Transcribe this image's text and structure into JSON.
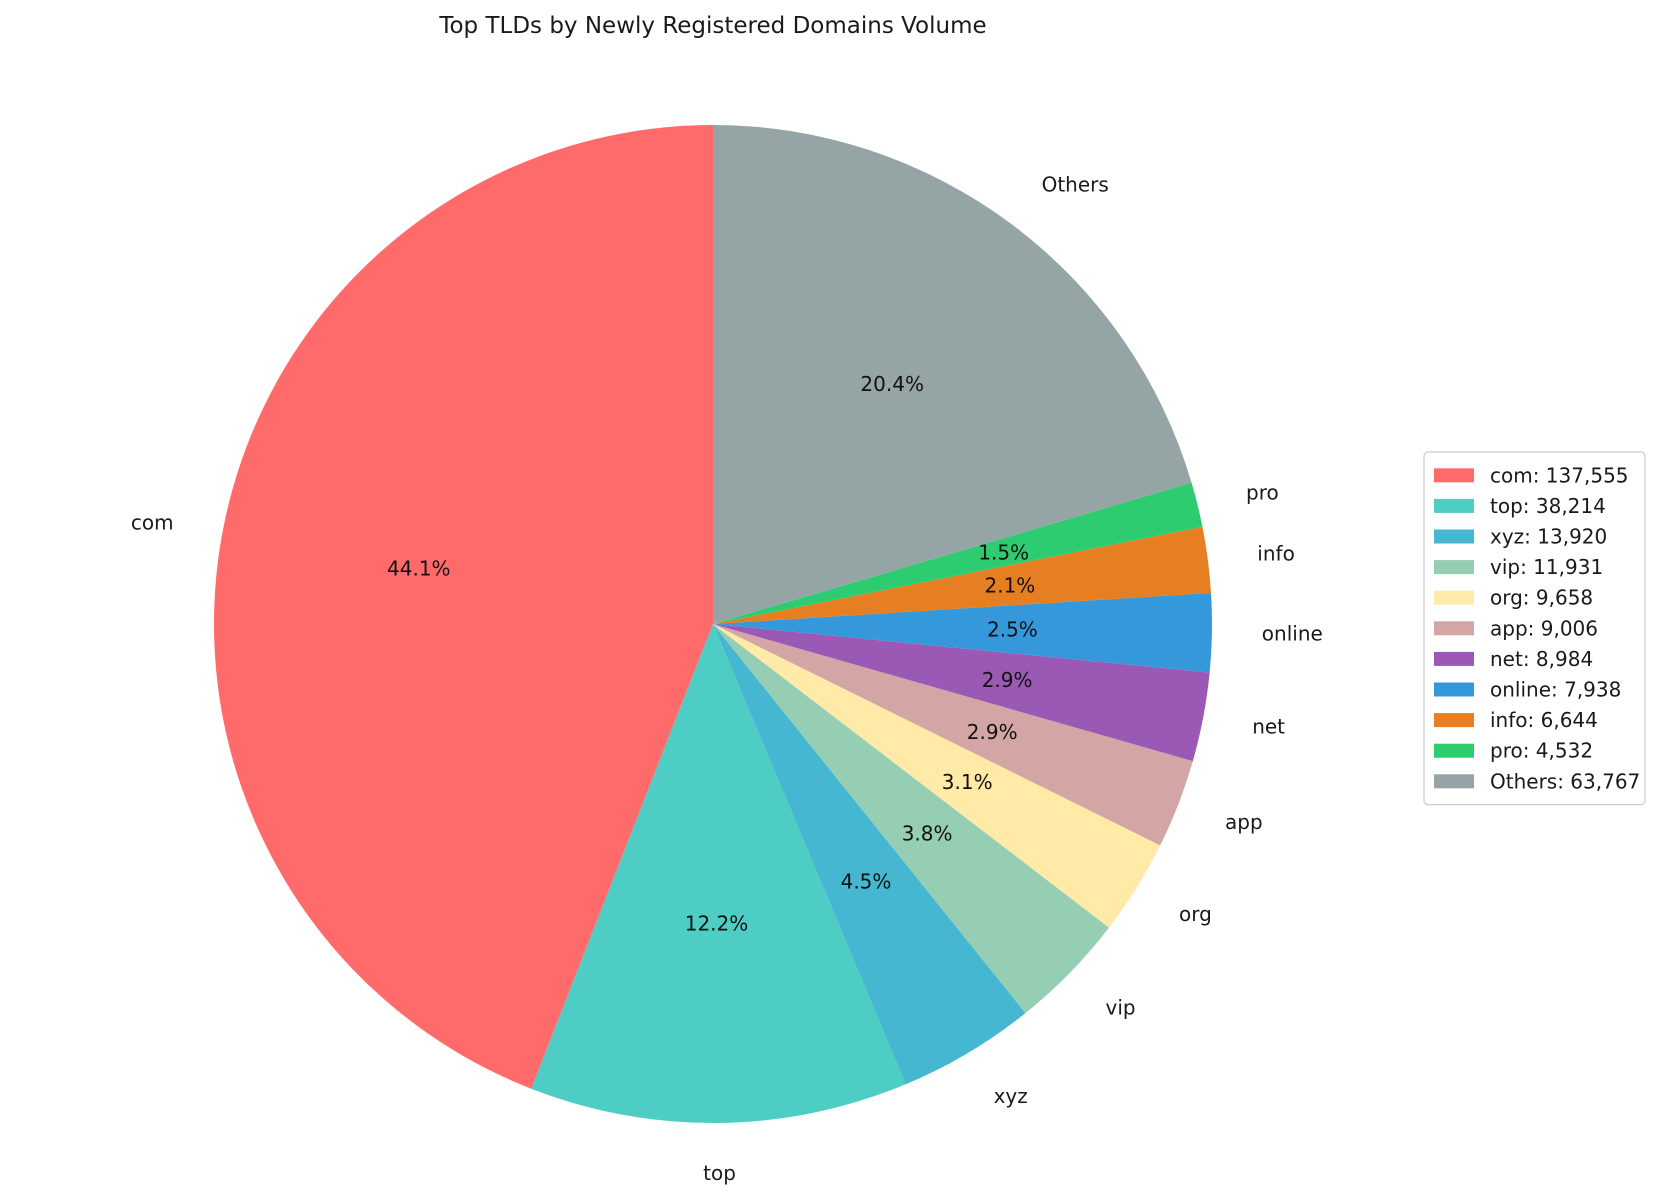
{
  "chart_data": {
    "type": "pie",
    "title": "Top TLDs by Newly Registered Domains Volume",
    "start_angle_deg": 90,
    "direction": "counterclockwise",
    "legend_position": "right",
    "slices": [
      {
        "label": "com",
        "value": 137555,
        "pct_label": "44.1%",
        "legend_label": "com: 137,555",
        "color": "#FF6B6B"
      },
      {
        "label": "top",
        "value": 38214,
        "pct_label": "12.2%",
        "legend_label": "top: 38,214",
        "color": "#4ECDC4"
      },
      {
        "label": "xyz",
        "value": 13920,
        "pct_label": "4.5%",
        "legend_label": "xyz: 13,920",
        "color": "#45B7D1"
      },
      {
        "label": "vip",
        "value": 11931,
        "pct_label": "3.8%",
        "legend_label": "vip: 11,931",
        "color": "#96CEB4"
      },
      {
        "label": "org",
        "value": 9658,
        "pct_label": "3.1%",
        "legend_label": "org: 9,658",
        "color": "#FFEAA7"
      },
      {
        "label": "app",
        "value": 9006,
        "pct_label": "2.9%",
        "legend_label": "app: 9,006",
        "color": "#D4A5A5"
      },
      {
        "label": "net",
        "value": 8984,
        "pct_label": "2.9%",
        "legend_label": "net: 8,984",
        "color": "#9B59B6"
      },
      {
        "label": "online",
        "value": 7938,
        "pct_label": "2.5%",
        "legend_label": "online: 7,938",
        "color": "#3498DB"
      },
      {
        "label": "info",
        "value": 6644,
        "pct_label": "2.1%",
        "legend_label": "info: 6,644",
        "color": "#E67E22"
      },
      {
        "label": "pro",
        "value": 4532,
        "pct_label": "1.5%",
        "legend_label": "pro: 4,532",
        "color": "#2ECC71"
      },
      {
        "label": "Others",
        "value": 63767,
        "pct_label": "20.4%",
        "legend_label": "Others: 63,767",
        "color": "#95A5A6"
      }
    ]
  }
}
